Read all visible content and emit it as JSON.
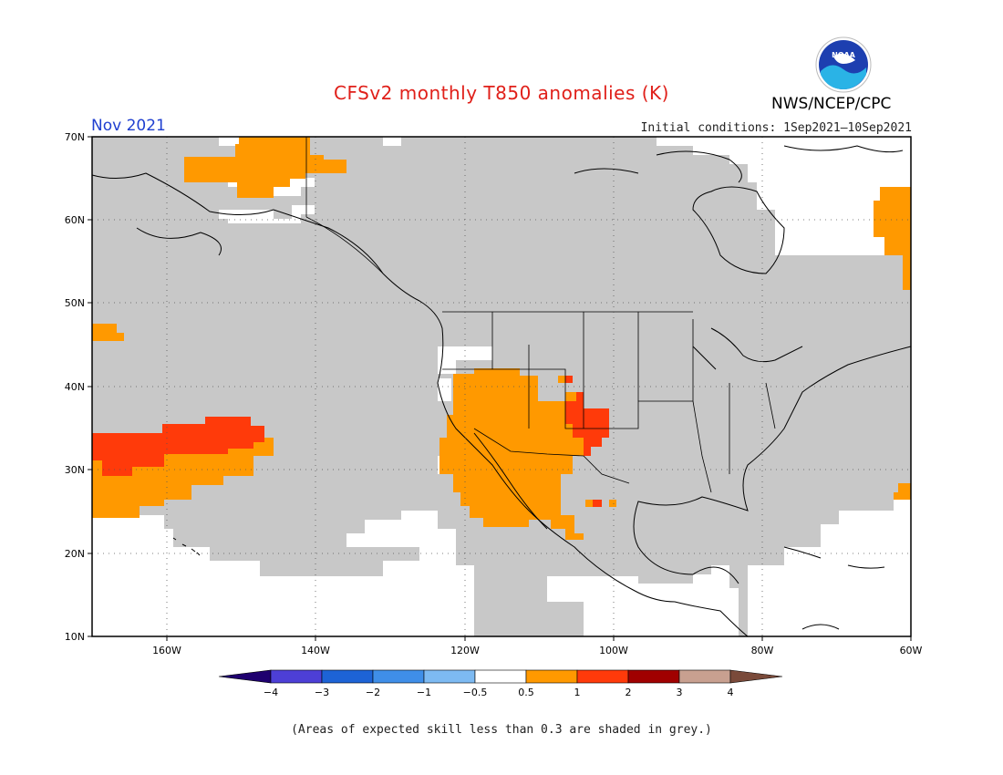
{
  "header": {
    "title": "CFSv2 monthly T850 anomalies (K)",
    "agency": "NWS/NCEP/CPC",
    "logo_text": "NOAA",
    "month": "Nov 2021",
    "initial_conditions": "Initial conditions: 1Sep2021–10Sep2021"
  },
  "map": {
    "lat_labels": [
      "70N",
      "60N",
      "50N",
      "40N",
      "30N",
      "20N",
      "10N"
    ],
    "lon_labels": [
      "160W",
      "140W",
      "120W",
      "100W",
      "80W",
      "60W"
    ],
    "extent": {
      "lon_min": -170,
      "lon_max": -60,
      "lat_min": 10,
      "lat_max": 70
    },
    "grid_lines": true,
    "skill_shading_color": "#c8c8c8"
  },
  "colorbar": {
    "tick_labels": [
      "−4",
      "−3",
      "−2",
      "−1",
      "−0.5",
      "0.5",
      "1",
      "2",
      "3",
      "4"
    ],
    "colors": {
      "lt_neg4": "#1f006f",
      "neg4_neg3": "#4d3fd6",
      "neg3_neg2": "#1d63d6",
      "neg2_neg1": "#3f8ee8",
      "neg1_neg05": "#7dbaf2",
      "neutral": "#ffffff",
      "p05_1": "#ff9900",
      "p1_2": "#ff3a0a",
      "p2_3": "#a00000",
      "p3_4": "#c8a090",
      "gt_4": "#7a4a3a"
    }
  },
  "footnote": "(Areas of expected skill less than 0.3 are shaded in grey.)"
}
